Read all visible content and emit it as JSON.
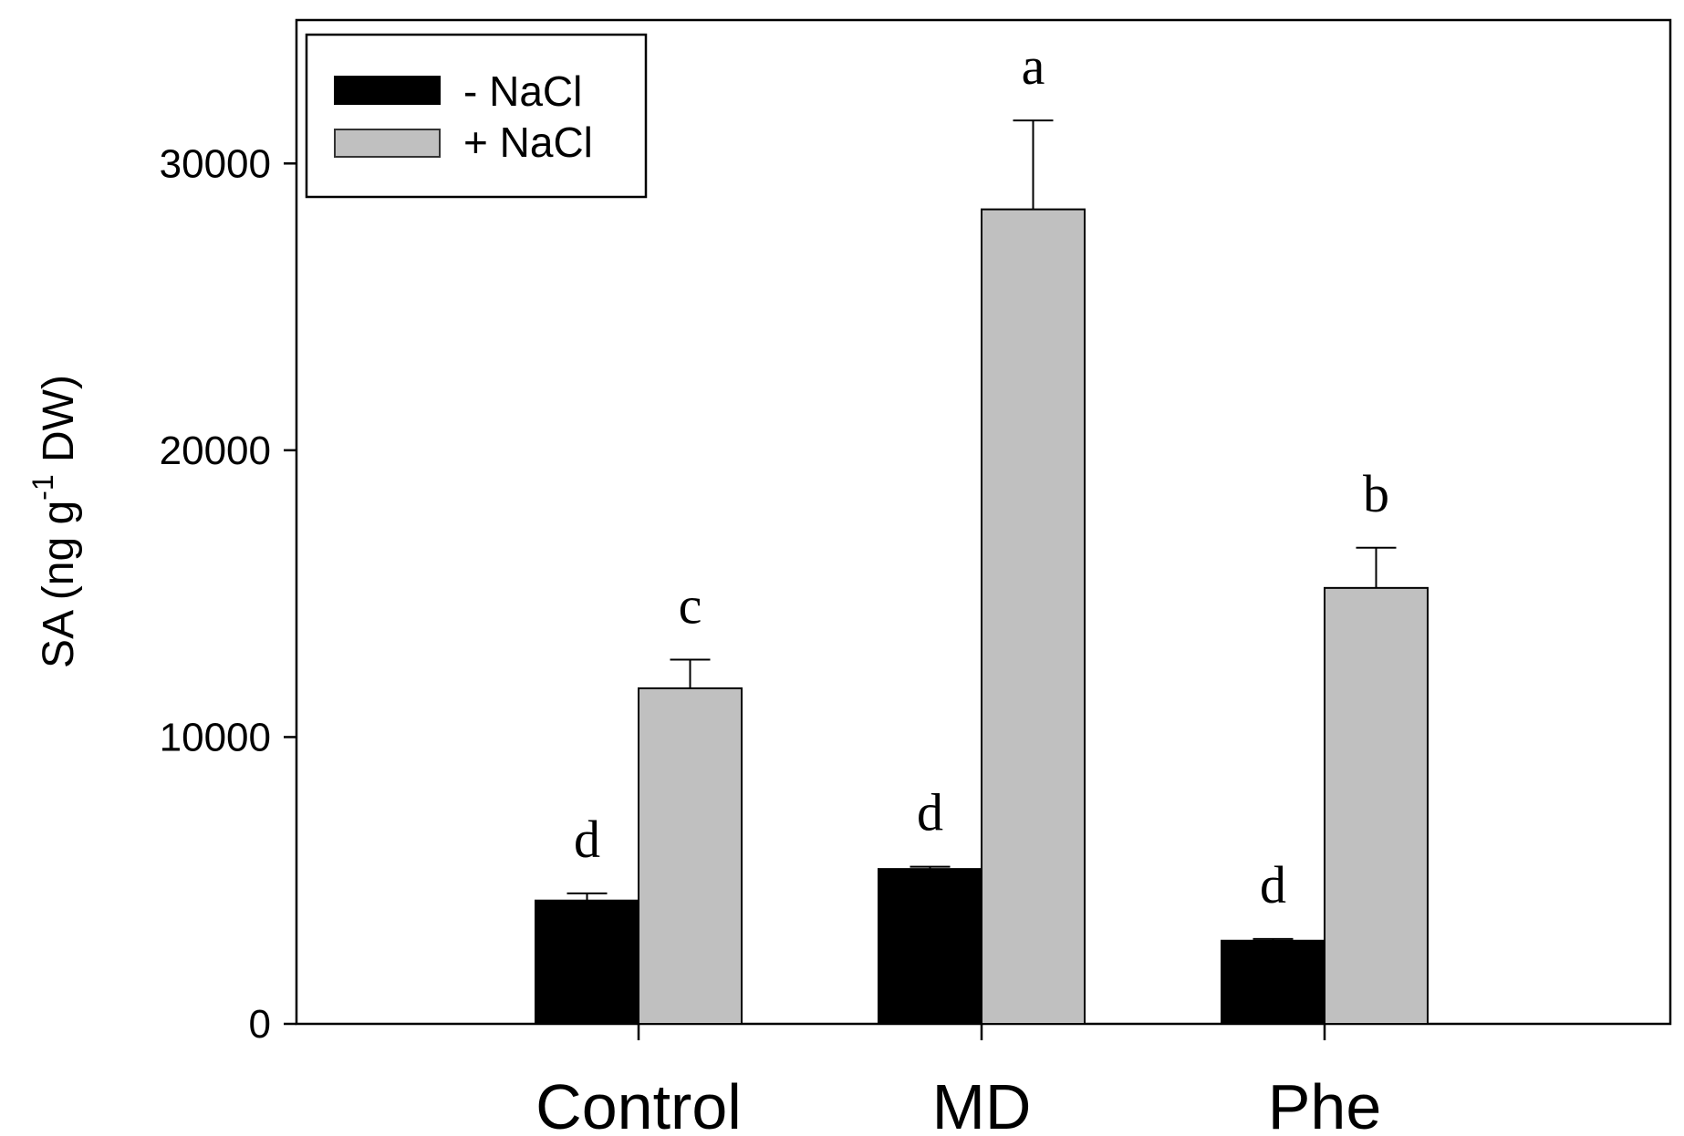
{
  "chart_data": {
    "type": "bar",
    "title": "",
    "xlabel": "",
    "ylabel": {
      "base": "SA (ng g",
      "superscript": "-1",
      "suffix": " DW)"
    },
    "categories": [
      "Control",
      "MD",
      "Phe"
    ],
    "ylim": [
      0,
      35000
    ],
    "yticks": [
      0,
      10000,
      20000,
      30000
    ],
    "ytick_labels": [
      "0",
      "10000",
      "20000",
      "30000"
    ],
    "grid": false,
    "legend_position": "top-left",
    "series": [
      {
        "name": "- NaCl",
        "color": "#000000",
        "values": [
          4300,
          5400,
          2900
        ],
        "errors": [
          250,
          80,
          60
        ],
        "significance": [
          "d",
          "d",
          "d"
        ]
      },
      {
        "name": "+ NaCl",
        "color": "#c0c0c0",
        "values": [
          11700,
          28400,
          15200
        ],
        "errors": [
          1000,
          3100,
          1400
        ],
        "significance": [
          "c",
          "a",
          "b"
        ]
      }
    ]
  }
}
